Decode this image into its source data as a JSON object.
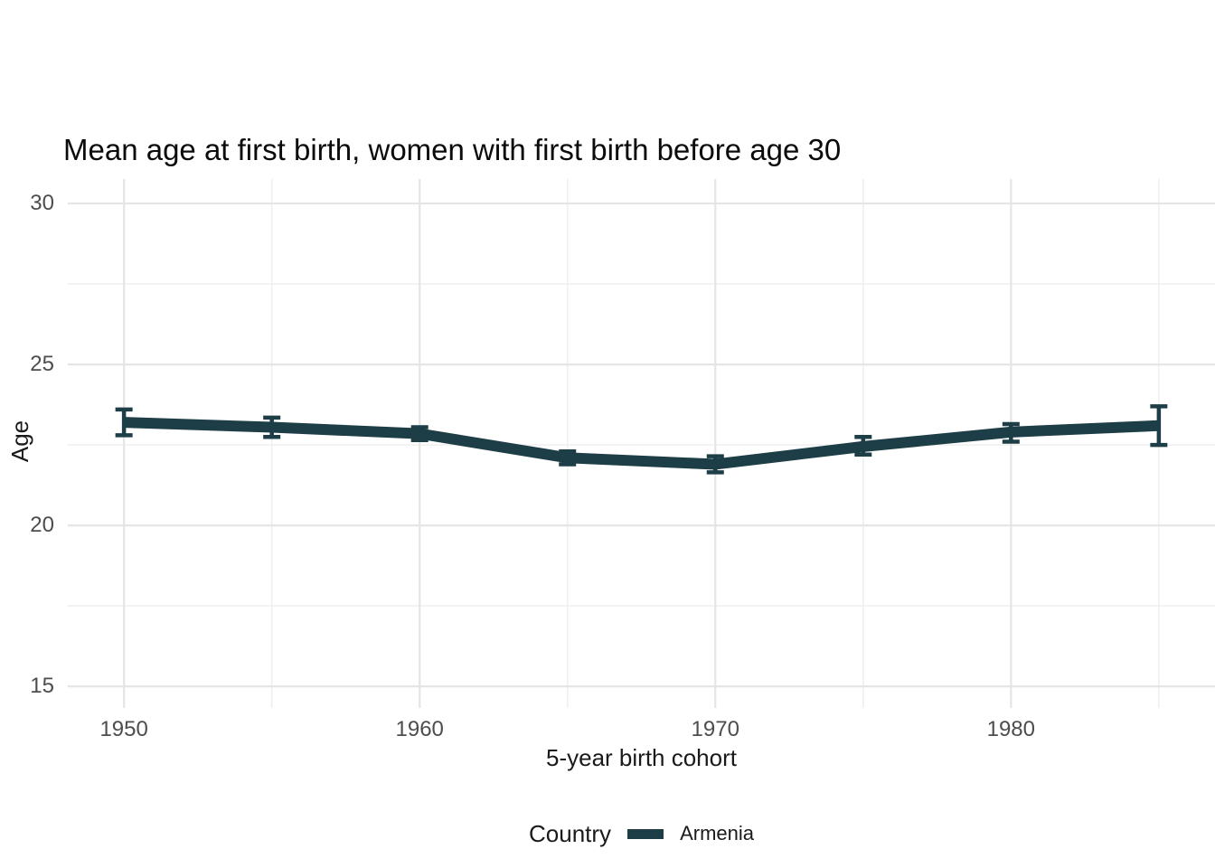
{
  "colors": {
    "background": "#ffffff",
    "line": "#1d3d47",
    "grid_major": "#e5e5e5",
    "grid_minor": "#efefef",
    "tick_text": "#4d4d4d",
    "axis_title_text": "#1a1a1a",
    "title_text": "#0b0b0b"
  },
  "chart_data": {
    "type": "line",
    "title": "Mean age at first birth, women with first birth before age 30",
    "xlabel": "5-year birth cohort",
    "ylabel": "Age",
    "legend_title": "Country",
    "legend_position": "bottom",
    "grid": true,
    "x_ticks": [
      1950,
      1960,
      1970,
      1980
    ],
    "x_minor_ticks": [
      1955,
      1965,
      1975,
      1985
    ],
    "y_ticks": [
      15,
      20,
      25,
      30
    ],
    "y_minor_ticks": [
      17.5,
      22.5,
      27.5
    ],
    "xlim": [
      1948.1,
      1986.9
    ],
    "ylim": [
      14.33,
      30.76
    ],
    "series": [
      {
        "name": "Armenia",
        "color": "#1d3d47",
        "x": [
          1950,
          1955,
          1960,
          1965,
          1970,
          1975,
          1980,
          1985
        ],
        "y": [
          23.2,
          23.05,
          22.85,
          22.1,
          21.9,
          22.45,
          22.9,
          23.1
        ],
        "ci_low": [
          22.8,
          22.75,
          22.65,
          21.9,
          21.65,
          22.2,
          22.6,
          22.5
        ],
        "ci_high": [
          23.6,
          23.35,
          23.05,
          22.3,
          22.15,
          22.75,
          23.15,
          23.7
        ]
      }
    ]
  }
}
